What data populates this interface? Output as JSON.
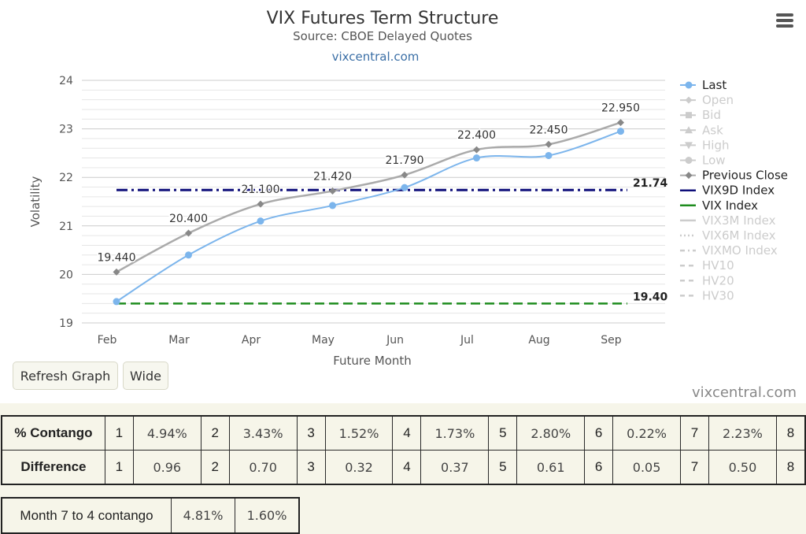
{
  "chart_data": {
    "type": "line",
    "title": "VIX Futures Term Structure",
    "subtitle": "Source: CBOE Delayed Quotes",
    "link_text": "vixcentral.com",
    "xlabel": "Future Month",
    "ylabel": "Volatility",
    "categories": [
      "Feb",
      "Mar",
      "Apr",
      "May",
      "Jun",
      "Jul",
      "Aug",
      "Sep"
    ],
    "ylim": [
      19,
      24
    ],
    "yticks": [
      19,
      20,
      21,
      22,
      23,
      24
    ],
    "grid": true,
    "legend_position": "right",
    "series": [
      {
        "name": "Last",
        "values": [
          19.44,
          20.4,
          21.1,
          21.42,
          21.79,
          22.4,
          22.45,
          22.95
        ],
        "color": "#7cb5ec",
        "visible": true
      },
      {
        "name": "Open",
        "visible": false
      },
      {
        "name": "Bid",
        "visible": false
      },
      {
        "name": "Ask",
        "visible": false
      },
      {
        "name": "High",
        "visible": false
      },
      {
        "name": "Low",
        "visible": false
      },
      {
        "name": "Previous Close",
        "values": [
          20.05,
          20.85,
          21.45,
          21.72,
          22.05,
          22.57,
          22.68,
          23.13
        ],
        "color": "#aaaaaa",
        "visible": true
      },
      {
        "name": "VIX9D Index",
        "value": 21.74,
        "value_label": "21.74",
        "color": "#0f0f7a",
        "visible": true
      },
      {
        "name": "VIX Index",
        "value": 19.4,
        "value_label": "19.40",
        "color": "#1e8c1e",
        "visible": true
      },
      {
        "name": "VIX3M Index",
        "visible": false
      },
      {
        "name": "VIX6M Index",
        "visible": false
      },
      {
        "name": "VIXMO Index",
        "visible": false
      },
      {
        "name": "HV10",
        "visible": false
      },
      {
        "name": "HV20",
        "visible": false
      },
      {
        "name": "HV30",
        "visible": false
      }
    ],
    "data_labels": [
      "19.440",
      "20.400",
      "21.100",
      "21.420",
      "21.790",
      "22.400",
      "22.450",
      "22.950"
    ]
  },
  "buttons": {
    "refresh": "Refresh Graph",
    "wide": "Wide"
  },
  "credit": "vixcentral.com",
  "table": {
    "rows": [
      {
        "label": "% Contango",
        "cells": [
          {
            "month": "1",
            "value": "4.94%"
          },
          {
            "month": "2",
            "value": "3.43%"
          },
          {
            "month": "3",
            "value": "1.52%"
          },
          {
            "month": "4",
            "value": "1.73%"
          },
          {
            "month": "5",
            "value": "2.80%"
          },
          {
            "month": "6",
            "value": "0.22%"
          },
          {
            "month": "7",
            "value": "2.23%"
          },
          {
            "month": "8",
            "value": ""
          }
        ]
      },
      {
        "label": "Difference",
        "cells": [
          {
            "month": "1",
            "value": "0.96"
          },
          {
            "month": "2",
            "value": "0.70"
          },
          {
            "month": "3",
            "value": "0.32"
          },
          {
            "month": "4",
            "value": "0.37"
          },
          {
            "month": "5",
            "value": "0.61"
          },
          {
            "month": "6",
            "value": "0.05"
          },
          {
            "month": "7",
            "value": "0.50"
          },
          {
            "month": "8",
            "value": ""
          }
        ]
      }
    ]
  },
  "contango74": {
    "label": "Month 7 to 4 contango",
    "values": [
      "4.81%",
      "1.60%"
    ]
  }
}
